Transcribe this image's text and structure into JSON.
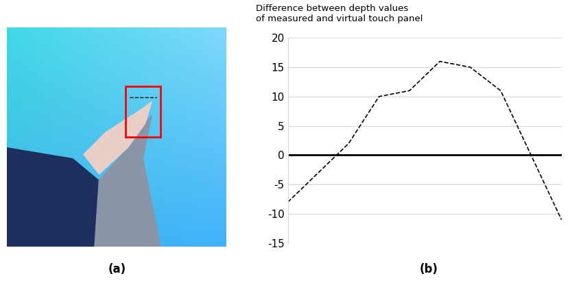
{
  "chart_data": {
    "type": "line",
    "ylabel": "Difference between depth values\nof measured and virtual touch panel",
    "categories": [
      null,
      null,
      null,
      null,
      null,
      null,
      null,
      null,
      null,
      null
    ],
    "values": [
      -8,
      -3,
      2,
      10,
      11,
      16,
      15,
      11,
      0,
      -11
    ],
    "color": "#000000",
    "line_style": "dashed",
    "ylim": [
      -15,
      20
    ],
    "yticks": [
      -15,
      -10,
      -5,
      0,
      5,
      10,
      15,
      20
    ],
    "grid": true,
    "tick_labels": "y"
  },
  "panel_labels": [
    "(a)",
    "(b)"
  ]
}
